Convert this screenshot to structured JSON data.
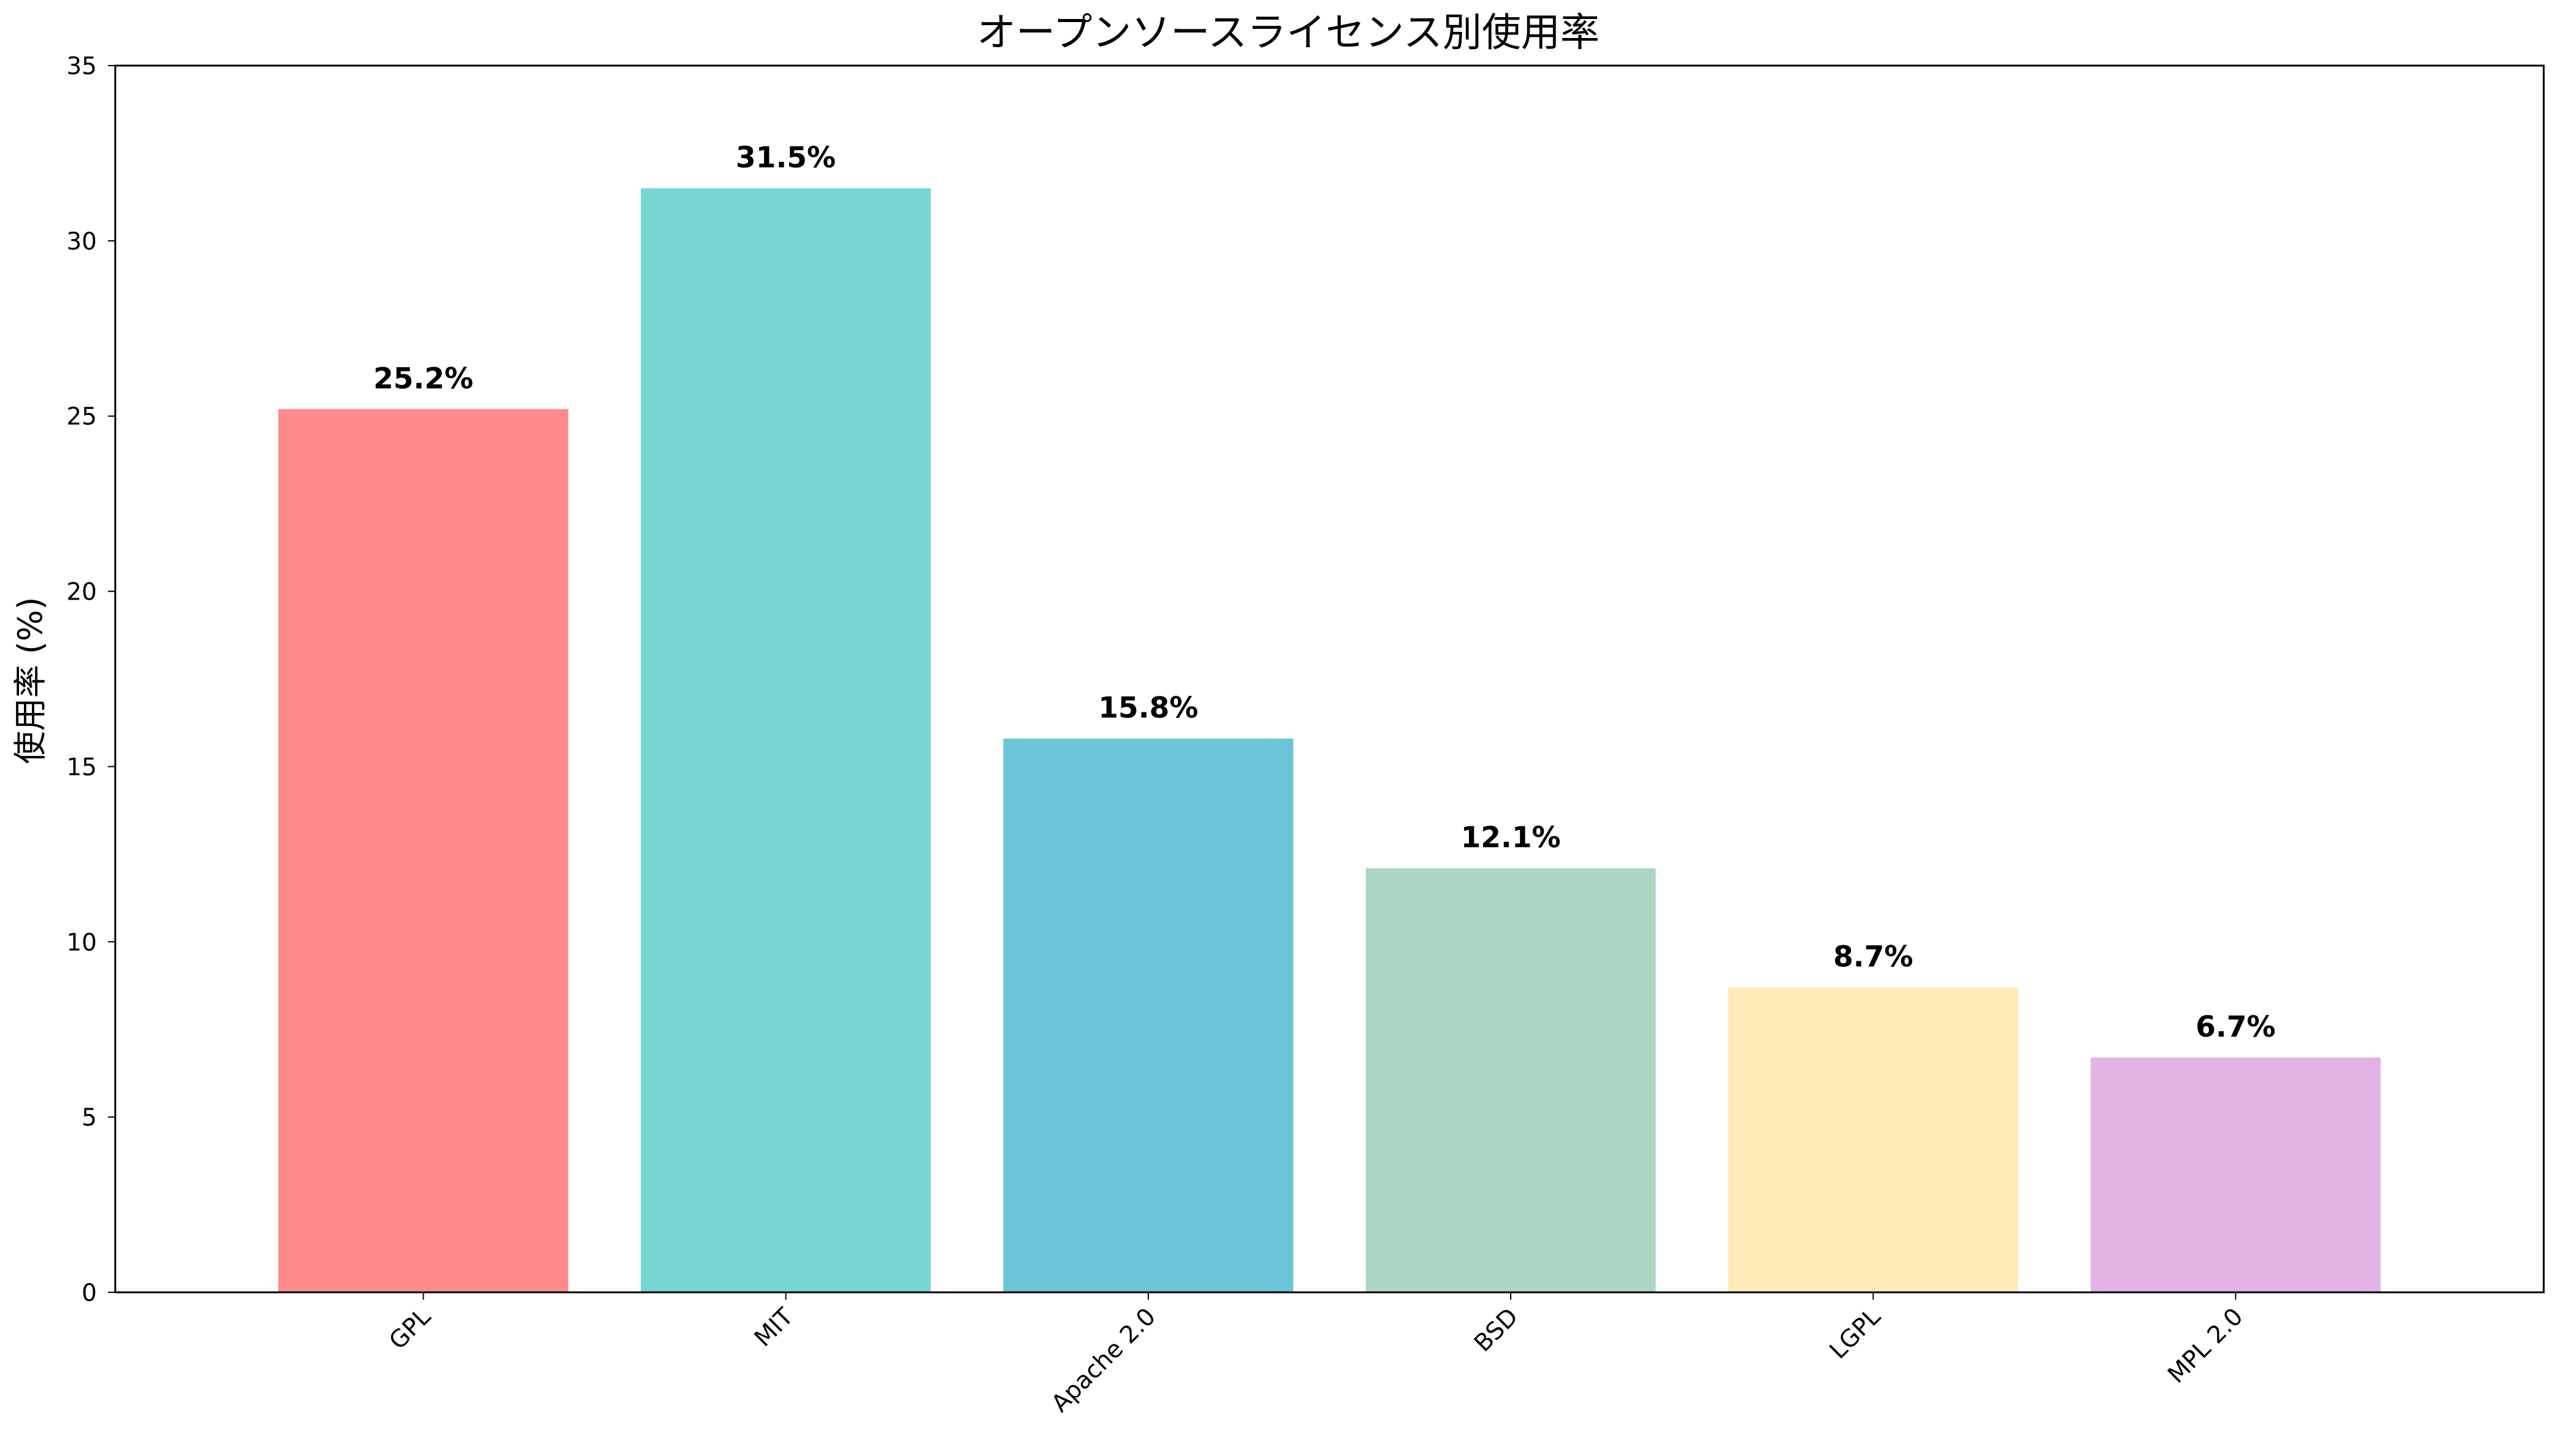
{
  "chart_data": {
    "type": "bar",
    "title": "オープンソースライセンス別使用率",
    "xlabel": "",
    "ylabel": "使用率 (%)",
    "categories": [
      "GPL",
      "MIT",
      "Apache 2.0",
      "BSD",
      "LGPL",
      "MPL 2.0"
    ],
    "values": [
      25.2,
      31.5,
      15.8,
      12.1,
      8.7,
      6.7
    ],
    "value_labels": [
      "25.2%",
      "31.5%",
      "15.8%",
      "12.1%",
      "8.7%",
      "6.7%"
    ],
    "colors": [
      "#FF8A8A",
      "#76D7D2",
      "#6BC5D9",
      "#ADD7C3",
      "#FFEBB8",
      "#E2B3E3"
    ],
    "ylim": [
      0,
      35
    ],
    "yticks": [
      0,
      5,
      10,
      15,
      20,
      25,
      30,
      35
    ],
    "xtick_rotation_deg": 45,
    "grid": false,
    "legend": "none"
  }
}
